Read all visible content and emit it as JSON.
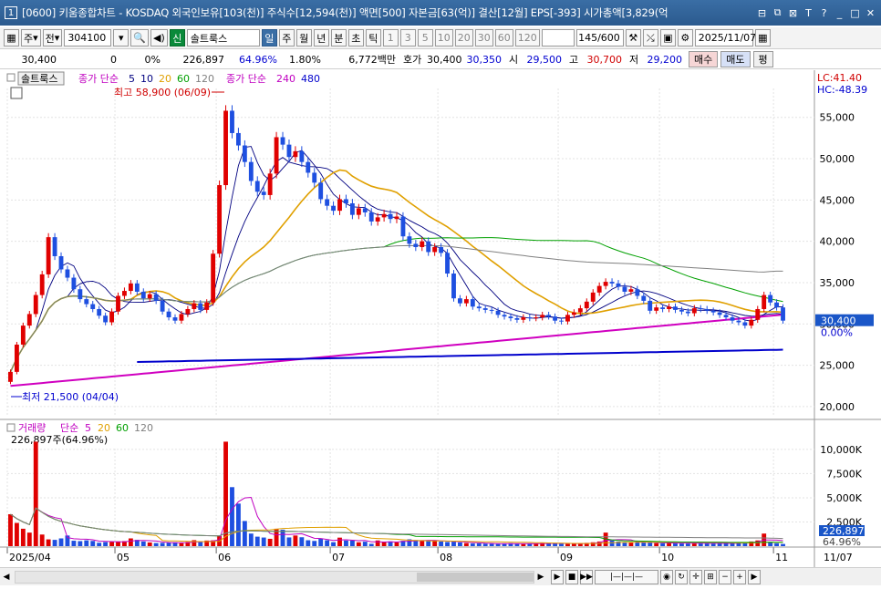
{
  "window": {
    "number": "1",
    "title": "[0600] 키움종합차트 - KOSDAQ 외국인보유[103(천)] 주식수[12,594(천)] 액면[500] 자본금[63(억)] 결산[12월] EPS[-393] 시가총액[3,829(억"
  },
  "toolbar": {
    "period_mode": "주",
    "prefix": "전",
    "code": "304100",
    "sin_label": "신",
    "stock_name": "솔트룩스",
    "period_buttons": [
      "일",
      "주",
      "월",
      "년",
      "분",
      "초",
      "틱"
    ],
    "active_period": "일",
    "minute_buttons": [
      "1",
      "3",
      "5",
      "10",
      "20",
      "30",
      "60",
      "120"
    ],
    "count": "145/600",
    "date": "2025/11/07"
  },
  "info": {
    "price": "30,400",
    "change": "0",
    "change_pct": "0%",
    "volume": "226,897",
    "vol_ratio": "64.96%",
    "turnover": "1.80%",
    "amount": "6,772백만",
    "hoga_label": "호가",
    "ask": "30,400",
    "bid": "30,350",
    "open_label": "시",
    "open": "29,500",
    "high_label": "고",
    "high": "30,700",
    "low_label": "저",
    "low": "29,200",
    "buy_label": "매수",
    "sell_label": "매도",
    "eval_label": "평"
  },
  "chart_data": [
    {
      "type": "candlestick",
      "legend": {
        "stock": "솔트룩스",
        "ma_label_1": "종가 단순",
        "ma_periods_1": [
          "5",
          "10",
          "20",
          "60",
          "120"
        ],
        "ma_label_2": "종가 단순",
        "ma_periods_2": [
          "240",
          "480"
        ]
      },
      "ma_colors": {
        "5": "#000080",
        "10": "#000080",
        "20": "#e0a000",
        "60": "#00a000",
        "120": "#808080",
        "240": "#d000c0",
        "480": "#0000cc"
      },
      "lc_label": "LC:41.40",
      "hc_label": "HC:-48.39",
      "annotations": {
        "high_text": "최고 58,900 (06/09)",
        "low_text": "최저 21,500 (04/04)"
      },
      "y_ticks": [
        "55,000",
        "50,000",
        "45,000",
        "40,000",
        "35,000",
        "30,000",
        "25,000",
        "20,000"
      ],
      "y_tick_values": [
        55000,
        50000,
        45000,
        40000,
        35000,
        30000,
        25000,
        20000
      ],
      "ylim": [
        19000,
        58500
      ],
      "current_price_label": "30,400",
      "current_price": 30400,
      "current_pct_label": "0.00%",
      "x_labels": [
        "2025/04",
        "05",
        "06",
        "07",
        "08",
        "09",
        "10",
        "11",
        "11/07"
      ],
      "closes": [
        24200,
        27500,
        29800,
        31200,
        33500,
        36000,
        40500,
        38200,
        36600,
        35600,
        34200,
        33000,
        32400,
        31800,
        31000,
        30200,
        31500,
        33400,
        34000,
        34900,
        33900,
        33100,
        33600,
        32800,
        31500,
        30800,
        30400,
        31200,
        31800,
        32500,
        31700,
        32600,
        38500,
        46800,
        55800,
        53100,
        51600,
        49600,
        47300,
        46000,
        45600,
        48200,
        52600,
        51700,
        50200,
        50900,
        49600,
        48300,
        47100,
        45100,
        44300,
        43700,
        45100,
        44600,
        43200,
        44000,
        43500,
        42400,
        42900,
        43300,
        42700,
        43000,
        40600,
        39700,
        39300,
        40000,
        38700,
        39300,
        38600,
        36100,
        33100,
        32500,
        33000,
        32100,
        31900,
        31700,
        31600,
        31100,
        30900,
        30700,
        30500,
        30800,
        30700,
        30800,
        31100,
        30900,
        30400,
        30300,
        31100,
        31400,
        31900,
        32700,
        33800,
        34600,
        35100,
        34900,
        34500,
        33900,
        34200,
        33400,
        32800,
        31600,
        32000,
        31800,
        32100,
        31700,
        31500,
        31300,
        31900,
        31800,
        31600,
        31400,
        31100,
        30800,
        30400,
        30200,
        29800,
        30500,
        31800,
        33500,
        32600,
        32000,
        30400
      ],
      "volume_panel": {
        "legend_label": "거래량",
        "ma_label": "단순",
        "ma_periods": [
          "5",
          "20",
          "60",
          "120"
        ],
        "value_text": "226,897주(64.96%)",
        "y_ticks": [
          "10,000K",
          "7,500K",
          "5,000K",
          "2,500K"
        ],
        "y_tick_values": [
          10000,
          7500,
          5000,
          2500
        ],
        "ylim": [
          0,
          11500
        ],
        "current_volume_label": "226,897",
        "current_pct_label": "64.96%",
        "volumes_k": [
          3300,
          2400,
          1800,
          1400,
          10800,
          1200,
          700,
          650,
          800,
          1100,
          560,
          520,
          600,
          540,
          350,
          420,
          430,
          490,
          520,
          800,
          650,
          480,
          380,
          320,
          340,
          360,
          400,
          310,
          430,
          620,
          460,
          580,
          600,
          1050,
          10800,
          6100,
          4400,
          2600,
          1300,
          980,
          890,
          760,
          1800,
          1700,
          900,
          1100,
          920,
          610,
          540,
          800,
          610,
          410,
          880,
          580,
          580,
          400,
          460,
          240,
          590,
          430,
          490,
          380,
          550,
          710,
          630,
          600,
          520,
          560,
          480,
          430,
          460,
          380,
          320,
          280,
          290,
          260,
          250,
          230,
          250,
          310,
          270,
          220,
          240,
          270,
          350,
          320,
          290,
          240,
          230,
          280,
          300,
          340,
          400,
          480,
          1400,
          580,
          470,
          400,
          390,
          420,
          410,
          360,
          310,
          300,
          320,
          330,
          290,
          280,
          310,
          300,
          280,
          270,
          290,
          310,
          330,
          360,
          410,
          480,
          590,
          1300,
          440,
          300,
          227
        ]
      }
    }
  ]
}
